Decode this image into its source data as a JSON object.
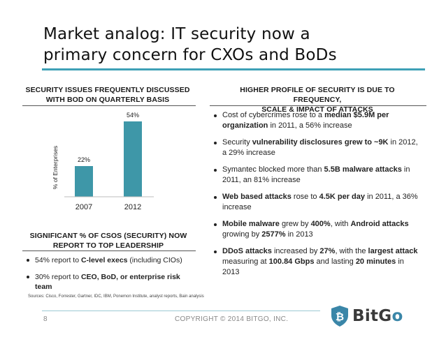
{
  "title": {
    "line1": "Market analog: IT security now a",
    "line2": "primary concern for CXOs and BoDs"
  },
  "left": {
    "chart_heading": {
      "line1": "SECURITY ISSUES FREQUENTLY DISCUSSED",
      "line2": "WITH BOD ON QUARTERLY BASIS"
    },
    "significant_heading": {
      "line1": "SIGNIFICANT % OF CSOS (SECURITY) NOW",
      "line2": "REPORT TO TOP LEADERSHIP"
    },
    "bullets": [
      {
        "pre": "54% report to ",
        "b1": "C-level execs",
        "post": " (including CIOs)"
      },
      {
        "pre": "30% report to ",
        "b1": "CEO, BoD, or enterprise risk team",
        "post": ""
      }
    ]
  },
  "chart_data": {
    "type": "bar",
    "categories": [
      "2007",
      "2012"
    ],
    "values": [
      22,
      54
    ],
    "value_labels": [
      "22%",
      "54%"
    ],
    "ylabel": "% of Enterprises",
    "ylim": [
      0,
      60
    ],
    "bar_color": "#3e97a8"
  },
  "right": {
    "heading": {
      "line1": "HIGHER PROFILE OF SECURITY IS DUE TO FREQUENCY,",
      "line2": "SCALE & IMPACT OF ATTACKS"
    },
    "bullets": [
      {
        "t1": "Cost of cybercrimes rose to a ",
        "b1": "median $5.9M per organization",
        "t2": " in 2011, a 56% increase"
      },
      {
        "t1": "Security ",
        "b1": "vulnerability disclosures grew to ~9K",
        "t2": " in 2012, a 29% increase"
      },
      {
        "t1": "Symantec blocked more than ",
        "b1": "5.5B malware attacks",
        "t2": " in 2011, an 81% increase"
      },
      {
        "t1": "",
        "b1": "Web based attacks",
        "t2": " rose to ",
        "b2": "4.5K per day",
        "t3": " in 2011, a 36% increase"
      },
      {
        "t1": "",
        "b1": "Mobile malware",
        "t2": " grew by ",
        "b2": "400%",
        "t3": ", with ",
        "b3": "Android attacks",
        "t4": " growing by ",
        "b4": "2577%",
        "t5": " in 2013"
      },
      {
        "t1": "",
        "b1": "DDoS attacks",
        "t2": " increased by ",
        "b2": "27%",
        "t3": ", with the ",
        "b3": "largest attack",
        "t4": " measuring at ",
        "b4": "100.84 Gbps",
        "t5": " and lasting ",
        "b5": "20 minutes",
        "t6": " in 2013"
      }
    ]
  },
  "sources": "Sources: Cisco, Forrester, Gartner, IDC, IBM, Ponemon Institute, analyst reports, Bain analysis",
  "footer": {
    "page_number": "8",
    "copyright": "COPYRIGHT © 2014 BITGO, INC.",
    "logo_text_main": "BitG",
    "logo_text_accent": "o"
  },
  "colors": {
    "accent": "#3ea0b6",
    "bar": "#3e97a8"
  }
}
